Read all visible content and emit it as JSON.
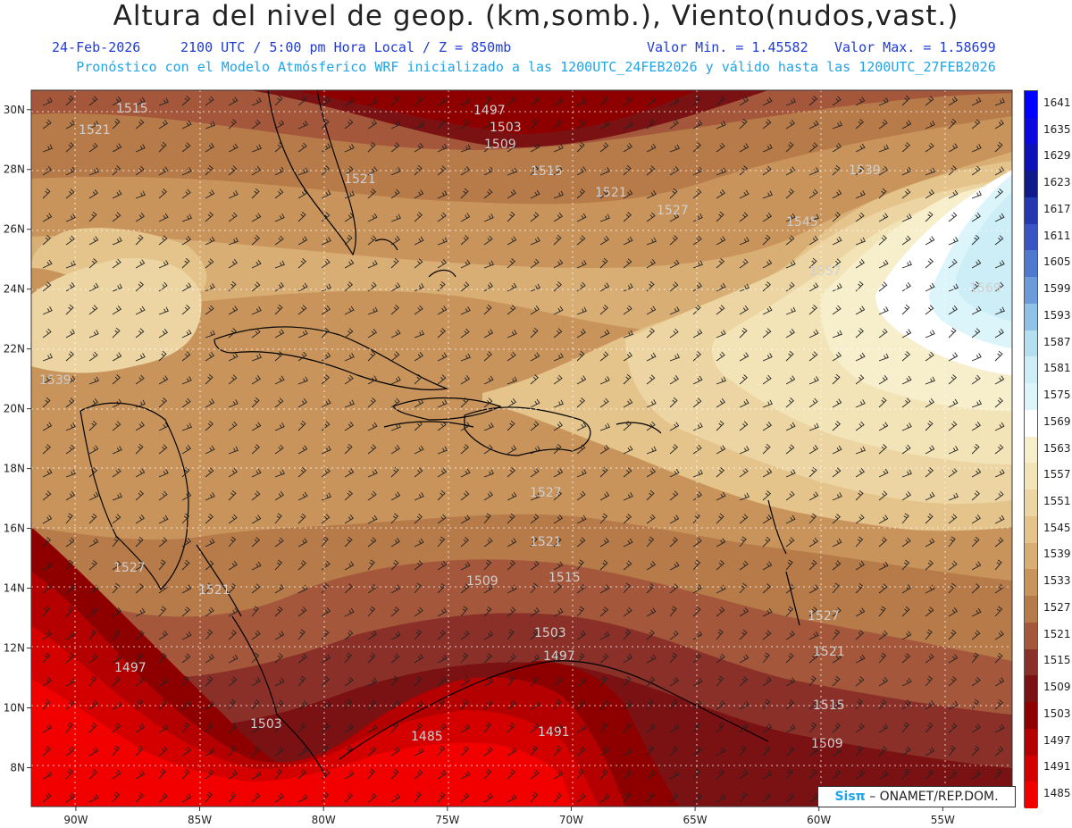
{
  "header": {
    "title": "Altura del nivel de geop. (km,somb.), Viento(nudos,vast.)",
    "date": "24-Feb-2026",
    "time": "2100 UTC / 5:00 pm Hora Local / Z = 850mb",
    "min": "Valor Min. = 1.45582",
    "max": "Valor Max. = 1.58699",
    "forecast": "Pronóstico con el Modelo Atmósferico WRF inicializado a las 1200UTC_24FEB2026 y válido hasta las  1200UTC_27FEB2026"
  },
  "axes": {
    "lon_labels": [
      "90W",
      "85W",
      "80W",
      "75W",
      "70W",
      "65W",
      "60W",
      "55W"
    ],
    "lon_values": [
      -90,
      -85,
      -80,
      -75,
      -70,
      -65,
      -60,
      -55
    ],
    "lat_labels": [
      "30N",
      "28N",
      "26N",
      "24N",
      "22N",
      "20N",
      "18N",
      "16N",
      "14N",
      "12N",
      "10N",
      "8N"
    ],
    "lat_values": [
      30,
      28,
      26,
      24,
      22,
      20,
      18,
      16,
      14,
      12,
      10,
      8
    ],
    "lon_range": [
      -91.8,
      -52.2
    ],
    "lat_range": [
      6.7,
      30.65
    ]
  },
  "legend": {
    "levels": [
      "1641",
      "1635",
      "1629",
      "1623",
      "1617",
      "1611",
      "1605",
      "1599",
      "1593",
      "1587",
      "1581",
      "1575",
      "1569",
      "1563",
      "1557",
      "1551",
      "1545",
      "1539",
      "1533",
      "1527",
      "1521",
      "1515",
      "1509",
      "1503",
      "1497",
      "1491",
      "1485"
    ],
    "colors": [
      "#0000ff",
      "#0a0ae0",
      "#0e10b8",
      "#101a8a",
      "#2438b0",
      "#3b54c4",
      "#4f78d0",
      "#6b9bd8",
      "#8fc2e6",
      "#b3dff0",
      "#cdeef6",
      "#dcf5fa",
      "#ffffff",
      "#f7efcc",
      "#f3e4b8",
      "#ecd5a2",
      "#e4c48b",
      "#d9ae75",
      "#c8945c",
      "#b77a49",
      "#a4573a",
      "#8a3028",
      "#7a1214",
      "#8e0000",
      "#b40000",
      "#d40000",
      "#f20000"
    ]
  },
  "contour_labels": [
    "1515",
    "1521",
    "1497",
    "1503",
    "1509",
    "1515",
    "1521",
    "1521",
    "1527",
    "1539",
    "1545",
    "1557",
    "1569",
    "1539",
    "1521",
    "1527",
    "1509",
    "1515",
    "1527",
    "1521",
    "1497",
    "1503",
    "1497",
    "1485",
    "1491",
    "1503",
    "1521",
    "1515",
    "1509",
    "1527"
  ],
  "credit": {
    "brand": "Sisπ",
    "text": "– ONAMET/REP.DOM."
  }
}
